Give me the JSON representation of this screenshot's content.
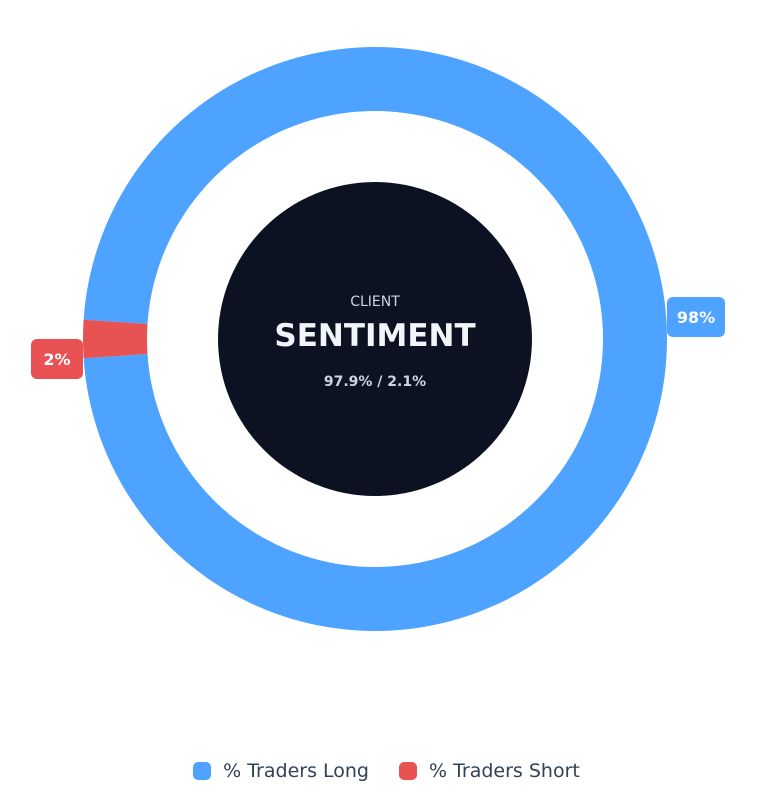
{
  "chart_data": {
    "type": "pie",
    "donut": true,
    "categories": [
      "% Traders Long",
      "% Traders Short"
    ],
    "values": [
      97.9,
      2.1
    ],
    "labels": [
      "98%",
      "2%"
    ],
    "colors": [
      "#4da3ff",
      "#e85252"
    ],
    "legend_placement": "bottom",
    "center": {
      "subtitle": "CLIENT",
      "title": "SENTIMENT",
      "ratio": "97.9% / 2.1%",
      "background": "#0c1221"
    }
  },
  "legend": {
    "items": [
      {
        "label": "% Traders Long",
        "color": "#4da3ff"
      },
      {
        "label": "% Traders Short",
        "color": "#e85252"
      }
    ]
  }
}
